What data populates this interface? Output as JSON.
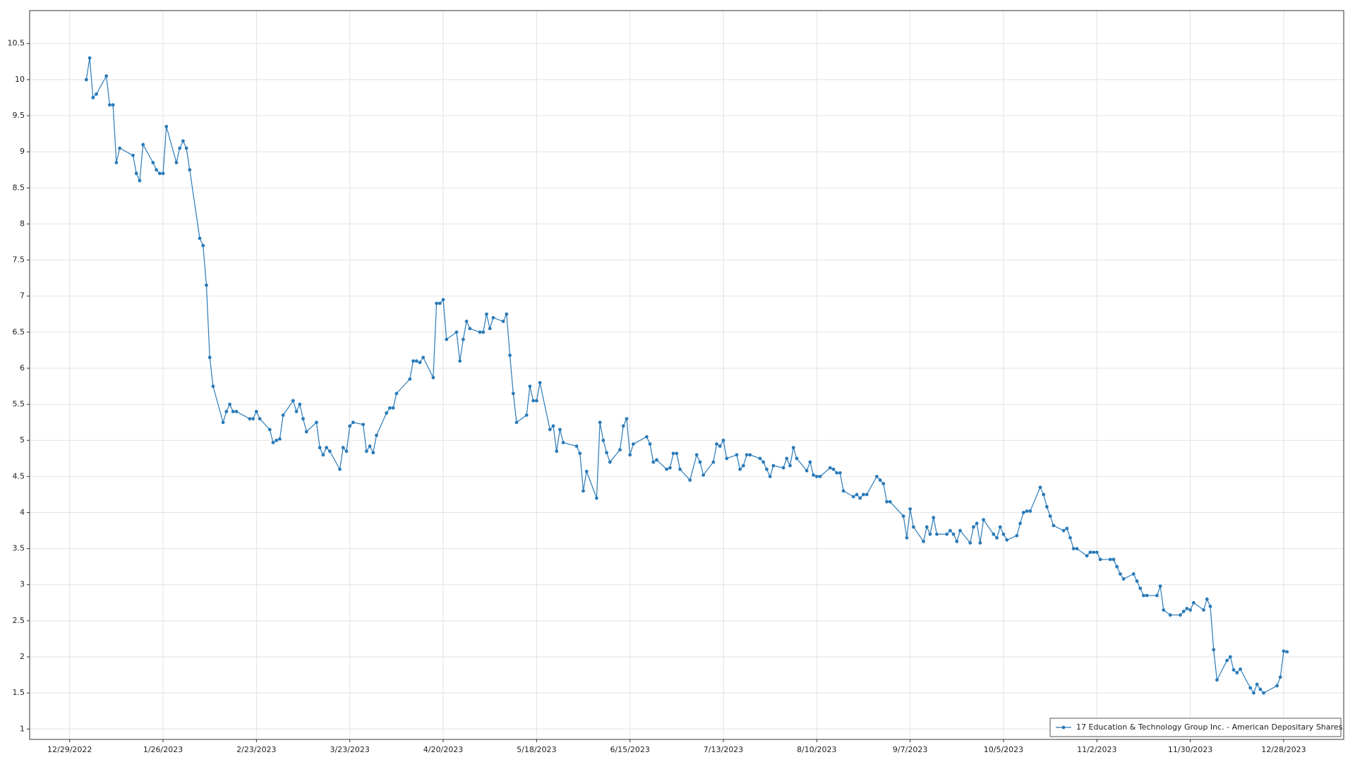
{
  "chart_data": {
    "type": "line",
    "xlim": [
      "12/17/2022",
      "1/15/2024"
    ],
    "xticks": [
      "12/29/2022",
      "1/26/2023",
      "2/23/2023",
      "3/23/2023",
      "4/20/2023",
      "5/18/2023",
      "6/15/2023",
      "7/13/2023",
      "8/10/2023",
      "9/7/2023",
      "10/5/2023",
      "11/2/2023",
      "11/30/2023",
      "12/28/2023"
    ],
    "ylim": [
      0.856,
      10.957
    ],
    "yticks": [
      1,
      1.5,
      2,
      2.5,
      3,
      3.5,
      4,
      4.5,
      5,
      5.5,
      6,
      6.5,
      7,
      7.5,
      8,
      8.5,
      9,
      9.5,
      10,
      10.5
    ],
    "grid": true,
    "legend": "lower right",
    "markers": true,
    "x": [
      "1/3/2023",
      "1/4/2023",
      "1/5/2023",
      "1/6/2023",
      "1/9/2023",
      "1/10/2023",
      "1/11/2023",
      "1/12/2023",
      "1/13/2023",
      "1/17/2023",
      "1/18/2023",
      "1/19/2023",
      "1/20/2023",
      "1/23/2023",
      "1/24/2023",
      "1/25/2023",
      "1/26/2023",
      "1/27/2023",
      "1/30/2023",
      "1/31/2023",
      "2/1/2023",
      "2/2/2023",
      "2/3/2023",
      "2/6/2023",
      "2/7/2023",
      "2/8/2023",
      "2/9/2023",
      "2/10/2023",
      "2/13/2023",
      "2/14/2023",
      "2/15/2023",
      "2/16/2023",
      "2/17/2023",
      "2/21/2023",
      "2/22/2023",
      "2/23/2023",
      "2/24/2023",
      "2/27/2023",
      "2/28/2023",
      "3/1/2023",
      "3/2/2023",
      "3/3/2023",
      "3/6/2023",
      "3/7/2023",
      "3/8/2023",
      "3/9/2023",
      "3/10/2023",
      "3/13/2023",
      "3/14/2023",
      "3/15/2023",
      "3/16/2023",
      "3/17/2023",
      "3/20/2023",
      "3/21/2023",
      "3/22/2023",
      "3/23/2023",
      "3/24/2023",
      "3/27/2023",
      "3/28/2023",
      "3/29/2023",
      "3/30/2023",
      "3/31/2023",
      "4/3/2023",
      "4/4/2023",
      "4/5/2023",
      "4/6/2023",
      "4/10/2023",
      "4/11/2023",
      "4/12/2023",
      "4/13/2023",
      "4/14/2023",
      "4/17/2023",
      "4/18/2023",
      "4/19/2023",
      "4/20/2023",
      "4/21/2023",
      "4/24/2023",
      "4/25/2023",
      "4/26/2023",
      "4/27/2023",
      "4/28/2023",
      "5/1/2023",
      "5/2/2023",
      "5/3/2023",
      "5/4/2023",
      "5/5/2023",
      "5/8/2023",
      "5/9/2023",
      "5/10/2023",
      "5/11/2023",
      "5/12/2023",
      "5/15/2023",
      "5/16/2023",
      "5/17/2023",
      "5/18/2023",
      "5/19/2023",
      "5/22/2023",
      "5/23/2023",
      "5/24/2023",
      "5/25/2023",
      "5/26/2023",
      "5/30/2023",
      "5/31/2023",
      "6/1/2023",
      "6/2/2023",
      "6/5/2023",
      "6/6/2023",
      "6/7/2023",
      "6/8/2023",
      "6/9/2023",
      "6/12/2023",
      "6/13/2023",
      "6/14/2023",
      "6/15/2023",
      "6/16/2023",
      "6/20/2023",
      "6/21/2023",
      "6/22/2023",
      "6/23/2023",
      "6/26/2023",
      "6/27/2023",
      "6/28/2023",
      "6/29/2023",
      "6/30/2023",
      "7/3/2023",
      "7/5/2023",
      "7/6/2023",
      "7/7/2023",
      "7/10/2023",
      "7/11/2023",
      "7/12/2023",
      "7/13/2023",
      "7/14/2023",
      "7/17/2023",
      "7/18/2023",
      "7/19/2023",
      "7/20/2023",
      "7/21/2023",
      "7/24/2023",
      "7/25/2023",
      "7/26/2023",
      "7/27/2023",
      "7/28/2023",
      "7/31/2023",
      "8/1/2023",
      "8/2/2023",
      "8/3/2023",
      "8/4/2023",
      "8/7/2023",
      "8/8/2023",
      "8/9/2023",
      "8/10/2023",
      "8/11/2023",
      "8/14/2023",
      "8/15/2023",
      "8/16/2023",
      "8/17/2023",
      "8/18/2023",
      "8/21/2023",
      "8/22/2023",
      "8/23/2023",
      "8/24/2023",
      "8/25/2023",
      "8/28/2023",
      "8/29/2023",
      "8/30/2023",
      "8/31/2023",
      "9/1/2023",
      "9/5/2023",
      "9/6/2023",
      "9/7/2023",
      "9/8/2023",
      "9/11/2023",
      "9/12/2023",
      "9/13/2023",
      "9/14/2023",
      "9/15/2023",
      "9/18/2023",
      "9/19/2023",
      "9/20/2023",
      "9/21/2023",
      "9/22/2023",
      "9/25/2023",
      "9/26/2023",
      "9/27/2023",
      "9/28/2023",
      "9/29/2023",
      "10/2/2023",
      "10/3/2023",
      "10/4/2023",
      "10/5/2023",
      "10/6/2023",
      "10/9/2023",
      "10/10/2023",
      "10/11/2023",
      "10/12/2023",
      "10/13/2023",
      "10/16/2023",
      "10/17/2023",
      "10/18/2023",
      "10/19/2023",
      "10/20/2023",
      "10/23/2023",
      "10/24/2023",
      "10/25/2023",
      "10/26/2023",
      "10/27/2023",
      "10/30/2023",
      "10/31/2023",
      "11/1/2023",
      "11/2/2023",
      "11/3/2023",
      "11/6/2023",
      "11/7/2023",
      "11/8/2023",
      "11/9/2023",
      "11/10/2023",
      "11/13/2023",
      "11/14/2023",
      "11/15/2023",
      "11/16/2023",
      "11/17/2023",
      "11/20/2023",
      "11/21/2023",
      "11/22/2023",
      "11/24/2023",
      "11/27/2023",
      "11/28/2023",
      "11/29/2023",
      "11/30/2023",
      "12/1/2023",
      "12/4/2023",
      "12/5/2023",
      "12/6/2023",
      "12/7/2023",
      "12/8/2023",
      "12/11/2023",
      "12/12/2023",
      "12/13/2023",
      "12/14/2023",
      "12/15/2023",
      "12/18/2023",
      "12/19/2023",
      "12/20/2023",
      "12/21/2023",
      "12/22/2023",
      "12/26/2023",
      "12/27/2023",
      "12/28/2023",
      "12/29/2023"
    ],
    "series": [
      {
        "name": "17 Education & Technology Group Inc. - American Depositary Shares",
        "color": "#2a7ab8",
        "values": [
          10.0,
          10.3,
          9.75,
          9.8,
          10.05,
          9.65,
          9.65,
          8.85,
          9.05,
          8.95,
          8.7,
          8.6,
          9.1,
          8.85,
          8.75,
          8.7,
          8.7,
          9.35,
          8.85,
          9.05,
          9.15,
          9.05,
          8.75,
          7.8,
          7.7,
          7.15,
          6.15,
          5.75,
          5.25,
          5.4,
          5.5,
          5.4,
          5.4,
          5.3,
          5.3,
          5.4,
          5.3,
          5.15,
          4.97,
          5.0,
          5.02,
          5.35,
          5.55,
          5.4,
          5.5,
          5.3,
          5.12,
          5.25,
          4.9,
          4.8,
          4.9,
          4.85,
          4.6,
          4.9,
          4.85,
          5.2,
          5.25,
          5.22,
          4.85,
          4.92,
          4.83,
          5.07,
          5.38,
          5.45,
          5.45,
          5.65,
          5.85,
          6.1,
          6.1,
          6.08,
          6.15,
          5.87,
          6.9,
          6.9,
          6.95,
          6.4,
          6.5,
          6.1,
          6.4,
          6.65,
          6.55,
          6.5,
          6.5,
          6.75,
          6.55,
          6.7,
          6.65,
          6.75,
          6.18,
          5.65,
          5.25,
          5.35,
          5.75,
          5.55,
          5.55,
          5.8,
          5.15,
          5.2,
          4.85,
          5.15,
          4.97,
          4.92,
          4.82,
          4.3,
          4.57,
          4.2,
          5.25,
          5.0,
          4.83,
          4.7,
          4.87,
          5.2,
          5.3,
          4.8,
          4.95,
          5.05,
          4.95,
          4.7,
          4.73,
          4.6,
          4.62,
          4.82,
          4.82,
          4.6,
          4.45,
          4.8,
          4.7,
          4.52,
          4.7,
          4.95,
          4.92,
          5.0,
          4.75,
          4.8,
          4.6,
          4.65,
          4.8,
          4.8,
          4.75,
          4.7,
          4.6,
          4.5,
          4.65,
          4.62,
          4.75,
          4.65,
          4.9,
          4.75,
          4.58,
          4.7,
          4.52,
          4.5,
          4.5,
          4.62,
          4.6,
          4.55,
          4.55,
          4.3,
          4.22,
          4.25,
          4.2,
          4.25,
          4.25,
          4.5,
          4.45,
          4.4,
          4.15,
          4.15,
          3.95,
          3.65,
          4.05,
          3.8,
          3.6,
          3.8,
          3.7,
          3.93,
          3.7,
          3.7,
          3.75,
          3.7,
          3.6,
          3.75,
          3.58,
          3.8,
          3.85,
          3.58,
          3.9,
          3.7,
          3.65,
          3.8,
          3.7,
          3.62,
          3.68,
          3.85,
          4.0,
          4.02,
          4.02,
          4.35,
          4.25,
          4.08,
          3.95,
          3.82,
          3.75,
          3.78,
          3.65,
          3.5,
          3.5,
          3.4,
          3.45,
          3.45,
          3.45,
          3.35,
          3.35,
          3.35,
          3.25,
          3.15,
          3.08,
          3.15,
          3.05,
          2.95,
          2.85,
          2.85,
          2.85,
          2.98,
          2.65,
          2.58,
          2.58,
          2.63,
          2.67,
          2.65,
          2.75,
          2.65,
          2.8,
          2.7,
          2.1,
          1.68,
          1.95,
          2.0,
          1.82,
          1.78,
          1.83,
          1.57,
          1.5,
          1.62,
          1.55,
          1.5,
          1.6,
          1.72,
          2.08,
          2.07
        ]
      }
    ]
  }
}
